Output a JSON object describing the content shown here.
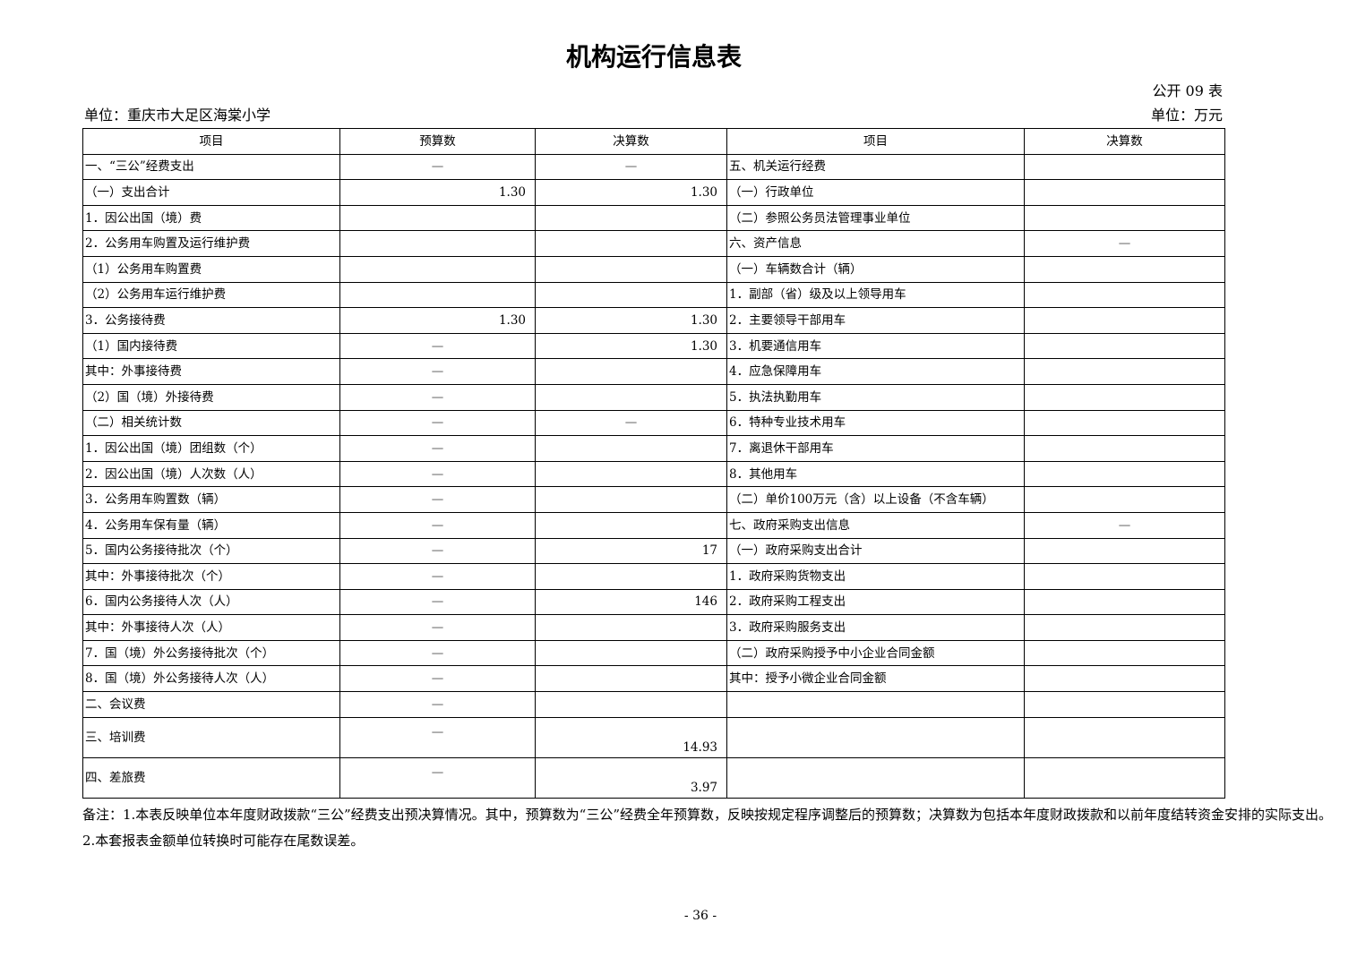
{
  "title": "机构运行信息表",
  "form_no": "公开 09 表",
  "unit_left": "单位：重庆市大足区海棠小学",
  "unit_right": "单位：万元",
  "headers": [
    "项目",
    "预算数",
    "决算数",
    "项目",
    "决算数"
  ],
  "rows": [
    [
      "一、“三公”经费支出",
      "—",
      "—",
      "五、机关运行经费",
      ""
    ],
    [
      "（一）支出合计",
      "1.30",
      "1.30",
      "（一）行政单位",
      ""
    ],
    [
      "1．因公出国（境）费",
      "",
      "",
      "（二）参照公务员法管理事业单位",
      ""
    ],
    [
      "2．公务用车购置及运行维护费",
      "",
      "",
      "六、资产信息",
      "—"
    ],
    [
      "（1）公务用车购置费",
      "",
      "",
      "（一）车辆数合计（辆）",
      ""
    ],
    [
      "（2）公务用车运行维护费",
      "",
      "",
      "1．副部（省）级及以上领导用车",
      ""
    ],
    [
      "3．公务接待费",
      "1.30",
      "1.30",
      "2．主要领导干部用车",
      ""
    ],
    [
      "（1）国内接待费",
      "—",
      "1.30",
      "3．机要通信用车",
      ""
    ],
    [
      "其中：外事接待费",
      "—",
      "",
      "4．应急保障用车",
      ""
    ],
    [
      "（2）国（境）外接待费",
      "—",
      "",
      "5．执法执勤用车",
      ""
    ],
    [
      "（二）相关统计数",
      "—",
      "—",
      "6．特种专业技术用车",
      ""
    ],
    [
      "1．因公出国（境）团组数（个）",
      "—",
      "",
      "7．离退休干部用车",
      ""
    ],
    [
      "2．因公出国（境）人次数（人）",
      "—",
      "",
      "8．其他用车",
      ""
    ],
    [
      "3．公务用车购置数（辆）",
      "—",
      "",
      "（二）单价100万元（含）以上设备（不含车辆）",
      ""
    ],
    [
      "4．公务用车保有量（辆）",
      "—",
      "",
      "七、政府采购支出信息",
      "—"
    ],
    [
      "5．国内公务接待批次（个）",
      "—",
      "17",
      "（一）政府采购支出合计",
      ""
    ],
    [
      "其中：外事接待批次（个）",
      "—",
      "",
      "1．政府采购货物支出",
      ""
    ],
    [
      "6．国内公务接待人次（人）",
      "—",
      "146",
      "2．政府采购工程支出",
      ""
    ],
    [
      "其中：外事接待人次（人）",
      "—",
      "",
      "3．政府采购服务支出",
      ""
    ],
    [
      "7．国（境）外公务接待批次（个）",
      "—",
      "",
      "（二）政府采购授予中小企业合同金额",
      ""
    ],
    [
      "8．国（境）外公务接待人次（人）",
      "—",
      "",
      "其中：授予小微企业合同金额",
      ""
    ],
    [
      "二、会议费",
      "—",
      "",
      "",
      ""
    ],
    [
      "三、培训费",
      "—",
      "14.93",
      "",
      ""
    ],
    [
      "四、差旅费",
      "—",
      "3.97",
      "",
      ""
    ]
  ],
  "notes": [
    "备注：1.本表反映单位本年度财政拨款“三公”经费支出预决算情况。其中，预算数为“三公”经费全年预算数，反映按规定程序调整后的预算数；决算数为包括本年度财政拨款和以前年度结转资金安排的实际支出。",
    "2.本套报表金额单位转换时可能存在尾数误差。"
  ],
  "page_number": "- 36 -"
}
